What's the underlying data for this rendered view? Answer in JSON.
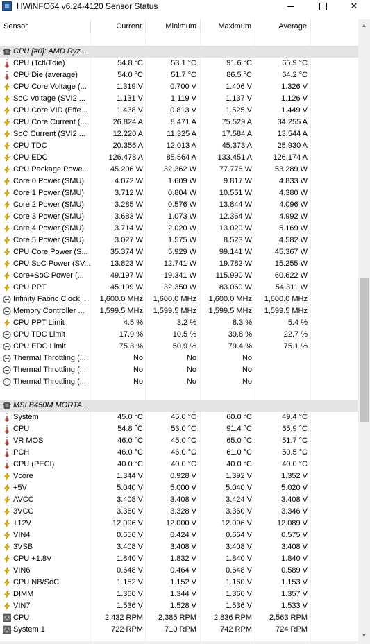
{
  "window": {
    "title": "HWiNFO64 v6.24-4120 Sensor Status",
    "minimize": "",
    "maximize": "",
    "close": "✕"
  },
  "columns": {
    "sensor": "Sensor",
    "current": "Current",
    "minimum": "Minimum",
    "maximum": "Maximum",
    "average": "Average"
  },
  "colors": {
    "group_bg": "#e4e4e4",
    "thermometer": "#c0392b",
    "bolt": "#f2c200",
    "scrollbar_thumb": "#c1c1c1"
  },
  "rows": [
    {
      "type": "spacer"
    },
    {
      "type": "group",
      "label": "CPU [#0]: AMD Ryz...",
      "icon": "chip-icon"
    },
    {
      "label": "CPU (Tctl/Tdie)",
      "icon": "thermometer-icon",
      "cur": "54.8 °C",
      "min": "53.1 °C",
      "max": "91.6 °C",
      "avg": "65.9 °C"
    },
    {
      "label": "CPU Die (average)",
      "icon": "thermometer-icon",
      "cur": "54.0 °C",
      "min": "51.7 °C",
      "max": "86.5 °C",
      "avg": "64.2 °C"
    },
    {
      "label": "CPU Core Voltage (...",
      "icon": "bolt-icon",
      "cur": "1.319 V",
      "min": "0.700 V",
      "max": "1.406 V",
      "avg": "1.326 V"
    },
    {
      "label": "SoC Voltage (SVI2 ...",
      "icon": "bolt-icon",
      "cur": "1.131 V",
      "min": "1.119 V",
      "max": "1.137 V",
      "avg": "1.126 V"
    },
    {
      "label": "CPU Core VID (Effe...",
      "icon": "bolt-icon",
      "cur": "1.438 V",
      "min": "0.813 V",
      "max": "1.525 V",
      "avg": "1.449 V"
    },
    {
      "label": "CPU Core Current (...",
      "icon": "bolt-icon",
      "cur": "26.824 A",
      "min": "8.471 A",
      "max": "75.529 A",
      "avg": "34.255 A"
    },
    {
      "label": "SoC Current (SVI2 ...",
      "icon": "bolt-icon",
      "cur": "12.220 A",
      "min": "11.325 A",
      "max": "17.584 A",
      "avg": "13.544 A"
    },
    {
      "label": "CPU TDC",
      "icon": "bolt-icon",
      "cur": "20.356 A",
      "min": "12.013 A",
      "max": "45.373 A",
      "avg": "25.930 A"
    },
    {
      "label": "CPU EDC",
      "icon": "bolt-icon",
      "cur": "126.478 A",
      "min": "85.564 A",
      "max": "133.451 A",
      "avg": "126.174 A"
    },
    {
      "label": "CPU Package Powe...",
      "icon": "bolt-icon",
      "cur": "45.206 W",
      "min": "32.362 W",
      "max": "77.776 W",
      "avg": "53.289 W"
    },
    {
      "label": "Core 0 Power (SMU)",
      "icon": "bolt-icon",
      "cur": "4.072 W",
      "min": "1.609 W",
      "max": "9.817 W",
      "avg": "4.833 W"
    },
    {
      "label": "Core 1 Power (SMU)",
      "icon": "bolt-icon",
      "cur": "3.712 W",
      "min": "0.804 W",
      "max": "10.551 W",
      "avg": "4.380 W"
    },
    {
      "label": "Core 2 Power (SMU)",
      "icon": "bolt-icon",
      "cur": "3.285 W",
      "min": "0.576 W",
      "max": "13.844 W",
      "avg": "4.096 W"
    },
    {
      "label": "Core 3 Power (SMU)",
      "icon": "bolt-icon",
      "cur": "3.683 W",
      "min": "1.073 W",
      "max": "12.364 W",
      "avg": "4.992 W"
    },
    {
      "label": "Core 4 Power (SMU)",
      "icon": "bolt-icon",
      "cur": "3.714 W",
      "min": "2.020 W",
      "max": "13.020 W",
      "avg": "5.169 W"
    },
    {
      "label": "Core 5 Power (SMU)",
      "icon": "bolt-icon",
      "cur": "3.027 W",
      "min": "1.575 W",
      "max": "8.523 W",
      "avg": "4.582 W"
    },
    {
      "label": "CPU Core Power (S...",
      "icon": "bolt-icon",
      "cur": "35.374 W",
      "min": "5.929 W",
      "max": "99.141 W",
      "avg": "45.367 W"
    },
    {
      "label": "CPU SoC Power (SV...",
      "icon": "bolt-icon",
      "cur": "13.823 W",
      "min": "12.741 W",
      "max": "19.782 W",
      "avg": "15.255 W"
    },
    {
      "label": "Core+SoC Power (...",
      "icon": "bolt-icon",
      "cur": "49.197 W",
      "min": "19.341 W",
      "max": "115.990 W",
      "avg": "60.622 W"
    },
    {
      "label": "CPU PPT",
      "icon": "bolt-icon",
      "cur": "45.199 W",
      "min": "32.350 W",
      "max": "83.060 W",
      "avg": "54.311 W"
    },
    {
      "label": "Infinity Fabric Clock...",
      "icon": "clock-icon",
      "cur": "1,600.0 MHz",
      "min": "1,600.0 MHz",
      "max": "1,600.0 MHz",
      "avg": "1,600.0 MHz"
    },
    {
      "label": "Memory Controller ...",
      "icon": "clock-icon",
      "cur": "1,599.5 MHz",
      "min": "1,599.5 MHz",
      "max": "1,599.5 MHz",
      "avg": "1,599.5 MHz"
    },
    {
      "label": "CPU PPT Limit",
      "icon": "bolt-icon",
      "cur": "4.5 %",
      "min": "3.2 %",
      "max": "8.3 %",
      "avg": "5.4 %"
    },
    {
      "label": "CPU TDC Limit",
      "icon": "clock-icon",
      "cur": "17.9 %",
      "min": "10.5 %",
      "max": "39.8 %",
      "avg": "22.7 %"
    },
    {
      "label": "CPU EDC Limit",
      "icon": "clock-icon",
      "cur": "75.3 %",
      "min": "50.9 %",
      "max": "79.4 %",
      "avg": "75.1 %"
    },
    {
      "label": "Thermal Throttling (...",
      "icon": "clock-icon",
      "cur": "No",
      "min": "No",
      "max": "No",
      "avg": ""
    },
    {
      "label": "Thermal Throttling (...",
      "icon": "clock-icon",
      "cur": "No",
      "min": "No",
      "max": "No",
      "avg": ""
    },
    {
      "label": "Thermal Throttling (...",
      "icon": "clock-icon",
      "cur": "No",
      "min": "No",
      "max": "No",
      "avg": ""
    },
    {
      "type": "spacer"
    },
    {
      "type": "group",
      "label": "MSI B450M MORTA...",
      "icon": "chip-icon"
    },
    {
      "label": "System",
      "icon": "thermometer-icon",
      "cur": "45.0 °C",
      "min": "45.0 °C",
      "max": "60.0 °C",
      "avg": "49.4 °C"
    },
    {
      "label": "CPU",
      "icon": "thermometer-icon",
      "cur": "54.8 °C",
      "min": "53.0 °C",
      "max": "91.4 °C",
      "avg": "65.9 °C"
    },
    {
      "label": "VR MOS",
      "icon": "thermometer-icon",
      "cur": "46.0 °C",
      "min": "45.0 °C",
      "max": "65.0 °C",
      "avg": "51.7 °C"
    },
    {
      "label": "PCH",
      "icon": "thermometer-icon",
      "cur": "46.0 °C",
      "min": "46.0 °C",
      "max": "61.0 °C",
      "avg": "50.5 °C"
    },
    {
      "label": "CPU (PECI)",
      "icon": "thermometer-icon",
      "cur": "40.0 °C",
      "min": "40.0 °C",
      "max": "40.0 °C",
      "avg": "40.0 °C"
    },
    {
      "label": "Vcore",
      "icon": "bolt-icon",
      "cur": "1.344 V",
      "min": "0.928 V",
      "max": "1.392 V",
      "avg": "1.352 V"
    },
    {
      "label": "+5V",
      "icon": "bolt-icon",
      "cur": "5.040 V",
      "min": "5.000 V",
      "max": "5.040 V",
      "avg": "5.020 V"
    },
    {
      "label": "AVCC",
      "icon": "bolt-icon",
      "cur": "3.408 V",
      "min": "3.408 V",
      "max": "3.424 V",
      "avg": "3.408 V"
    },
    {
      "label": "3VCC",
      "icon": "bolt-icon",
      "cur": "3.360 V",
      "min": "3.328 V",
      "max": "3.360 V",
      "avg": "3.346 V"
    },
    {
      "label": "+12V",
      "icon": "bolt-icon",
      "cur": "12.096 V",
      "min": "12.000 V",
      "max": "12.096 V",
      "avg": "12.089 V"
    },
    {
      "label": "VIN4",
      "icon": "bolt-icon",
      "cur": "0.656 V",
      "min": "0.424 V",
      "max": "0.664 V",
      "avg": "0.575 V"
    },
    {
      "label": "3VSB",
      "icon": "bolt-icon",
      "cur": "3.408 V",
      "min": "3.408 V",
      "max": "3.408 V",
      "avg": "3.408 V"
    },
    {
      "label": "CPU +1.8V",
      "icon": "bolt-icon",
      "cur": "1.840 V",
      "min": "1.832 V",
      "max": "1.840 V",
      "avg": "1.840 V"
    },
    {
      "label": "VIN6",
      "icon": "bolt-icon",
      "cur": "0.648 V",
      "min": "0.464 V",
      "max": "0.648 V",
      "avg": "0.589 V"
    },
    {
      "label": "CPU NB/SoC",
      "icon": "bolt-icon",
      "cur": "1.152 V",
      "min": "1.152 V",
      "max": "1.160 V",
      "avg": "1.153 V"
    },
    {
      "label": "DIMM",
      "icon": "bolt-icon",
      "cur": "1.360 V",
      "min": "1.344 V",
      "max": "1.360 V",
      "avg": "1.357 V"
    },
    {
      "label": "VIN7",
      "icon": "bolt-icon",
      "cur": "1.536 V",
      "min": "1.528 V",
      "max": "1.536 V",
      "avg": "1.533 V"
    },
    {
      "label": "CPU",
      "icon": "fan-icon",
      "cur": "2,432 RPM",
      "min": "2,385 RPM",
      "max": "2,836 RPM",
      "avg": "2,563 RPM"
    },
    {
      "label": "System 1",
      "icon": "fan-icon",
      "cur": "722 RPM",
      "min": "710 RPM",
      "max": "742 RPM",
      "avg": "724 RPM"
    }
  ]
}
